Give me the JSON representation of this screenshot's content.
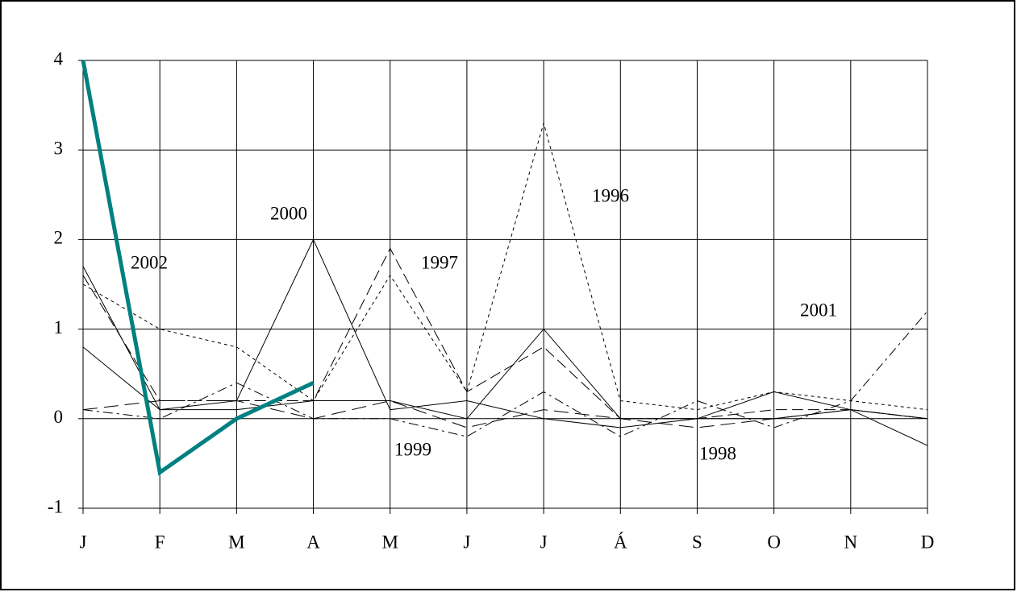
{
  "chart_data": {
    "type": "line",
    "categories": [
      "J",
      "F",
      "M",
      "A",
      "M",
      "J",
      "J",
      "Á",
      "S",
      "O",
      "N",
      "D"
    ],
    "ylim": [
      -1,
      4
    ],
    "yticks": [
      -1,
      0,
      1,
      2,
      3,
      4
    ],
    "grid": true,
    "series": [
      {
        "name": "1996",
        "color": "#000000",
        "values": [
          1.5,
          1.0,
          0.8,
          0.2,
          1.6,
          0.3,
          3.3,
          0.2,
          0.1,
          0.3,
          0.2,
          0.1
        ]
      },
      {
        "name": "1997",
        "color": "#000000",
        "values": [
          1.6,
          0.2,
          0.2,
          0.2,
          1.9,
          0.3,
          0.8,
          0.0,
          0.0,
          0.1,
          0.1,
          0.0
        ]
      },
      {
        "name": "1998",
        "color": "#000000",
        "values": [
          0.1,
          0.2,
          0.2,
          0.0,
          0.2,
          -0.1,
          0.1,
          0.0,
          -0.1,
          0.0,
          0.1,
          0.0
        ]
      },
      {
        "name": "1999",
        "color": "#000000",
        "values": [
          1.7,
          0.1,
          0.1,
          0.2,
          0.2,
          0.0,
          1.0,
          0.0,
          0.0,
          0.0,
          0.1,
          0.0
        ]
      },
      {
        "name": "2000",
        "color": "#000000",
        "values": [
          0.8,
          0.1,
          0.2,
          2.0,
          0.1,
          0.2,
          0.0,
          -0.1,
          0.0,
          0.3,
          0.1,
          -0.3
        ]
      },
      {
        "name": "2001",
        "color": "#000000",
        "values": [
          0.1,
          0.0,
          0.4,
          0.0,
          0.0,
          -0.2,
          0.3,
          -0.2,
          0.2,
          -0.1,
          0.2,
          1.2
        ]
      },
      {
        "name": "2002",
        "color": "#008080",
        "values": [
          4,
          -0.6,
          0,
          0.4,
          null,
          null,
          null,
          null,
          null,
          null,
          null,
          null
        ]
      }
    ]
  }
}
